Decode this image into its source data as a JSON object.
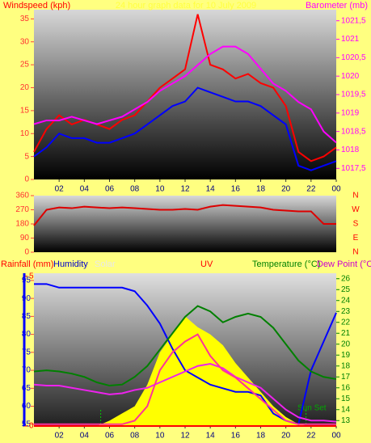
{
  "chart_data": [
    {
      "type": "line",
      "title": "24 hour graph data for 10 July 2009",
      "ylabel": "Windspeed (kph)",
      "y2label": "Barometer (mb)",
      "x": [
        0,
        1,
        2,
        3,
        4,
        5,
        6,
        7,
        8,
        9,
        10,
        11,
        12,
        13,
        14,
        15,
        16,
        17,
        18,
        19,
        20,
        21,
        22,
        23,
        24
      ],
      "xlim": [
        0,
        24
      ],
      "xticks": [
        {
          "value": 2,
          "label": "02"
        },
        {
          "value": 4,
          "label": "04"
        },
        {
          "value": 6,
          "label": "06"
        },
        {
          "value": 8,
          "label": "08"
        },
        10,
        12,
        14,
        16,
        18,
        20,
        22,
        {
          "value": 24,
          "label": "00"
        }
      ],
      "ylim": [
        0,
        37
      ],
      "yticks": [
        0,
        5,
        10,
        15,
        20,
        25,
        30,
        35
      ],
      "y2lim": [
        1017.2,
        1021.8
      ],
      "y2ticks": [
        {
          "value": 1017.5,
          "label": "1017,5"
        },
        1018,
        {
          "value": 1018.5,
          "label": "1018,5"
        },
        1019,
        {
          "value": 1019.5,
          "label": "1019,5"
        },
        1020,
        {
          "value": 1020.5,
          "label": "1020,5"
        },
        1021,
        {
          "value": 1021.5,
          "label": "1021,5"
        }
      ],
      "series": [
        {
          "color": "#ff0000",
          "values": [
            6,
            11,
            14,
            12,
            13,
            12,
            11,
            13,
            14,
            17,
            20,
            22,
            24,
            36,
            25,
            24,
            22,
            23,
            21,
            20,
            16,
            6,
            4,
            5,
            7
          ]
        },
        {
          "color": "#0000ff",
          "values": [
            5,
            7,
            10,
            9,
            9,
            8,
            8,
            9,
            10,
            12,
            14,
            16,
            17,
            20,
            19,
            18,
            17,
            17,
            16,
            14,
            12,
            3,
            2,
            3,
            4
          ]
        },
        {
          "color": "#ff00ff",
          "axis": "y2",
          "values": [
            1018.7,
            1018.8,
            1018.8,
            1018.9,
            1018.8,
            1018.7,
            1018.8,
            1018.9,
            1019.1,
            1019.3,
            1019.6,
            1019.8,
            1020.0,
            1020.3,
            1020.6,
            1020.8,
            1020.8,
            1020.6,
            1020.2,
            1019.8,
            1019.6,
            1019.3,
            1019.1,
            1018.5,
            1018.2
          ]
        }
      ]
    },
    {
      "type": "line",
      "x": [
        0,
        1,
        2,
        3,
        4,
        5,
        6,
        7,
        8,
        9,
        10,
        11,
        12,
        13,
        14,
        15,
        16,
        17,
        18,
        19,
        20,
        21,
        22,
        23,
        24
      ],
      "xlim": [
        0,
        24
      ],
      "ylim": [
        0,
        360
      ],
      "yticks": [
        0,
        90,
        180,
        270,
        360
      ],
      "compass_labels": [
        "N",
        "E",
        "S",
        "W",
        "N"
      ],
      "series": [
        {
          "color": "#dd0000",
          "values": [
            170,
            270,
            285,
            280,
            290,
            285,
            280,
            285,
            280,
            275,
            270,
            270,
            275,
            270,
            290,
            300,
            295,
            290,
            285,
            270,
            265,
            260,
            260,
            180,
            180
          ]
        }
      ]
    },
    {
      "type": "line",
      "labels": {
        "rain": "Rainfall (mm)",
        "humidity": "Humidity",
        "solar": "Solar",
        "uv": "UV",
        "temperature": "Temperature (°C)",
        "dew": "Dew Point (°C"
      },
      "annotation": "Sun Set",
      "x": [
        0,
        1,
        2,
        3,
        4,
        5,
        6,
        7,
        8,
        9,
        10,
        11,
        12,
        13,
        14,
        15,
        16,
        17,
        18,
        19,
        20,
        21,
        22,
        23,
        24
      ],
      "xlim": [
        0,
        24
      ],
      "xticks": [
        {
          "value": 2,
          "label": "02"
        },
        {
          "value": 4,
          "label": "04"
        },
        {
          "value": 6,
          "label": "06"
        },
        {
          "value": 8,
          "label": "08"
        },
        10,
        12,
        14,
        16,
        18,
        20,
        22,
        {
          "value": 24,
          "label": "00"
        }
      ],
      "sun_lines": [
        5.3,
        21.6
      ],
      "ylim": [
        54.5,
        97
      ],
      "yticks": [
        55,
        60,
        65,
        70,
        75,
        80,
        85,
        90,
        95
      ],
      "y2lim": [
        12.5,
        26.5
      ],
      "y2ticks": [
        13,
        14,
        15,
        16,
        17,
        18,
        19,
        20,
        21,
        22,
        23,
        24,
        25,
        26
      ],
      "rainlim": [
        0,
        5.1
      ],
      "rainticks": [
        0,
        5
      ],
      "series": [
        {
          "name": "Solar",
          "kind": "area",
          "color": "#ffff00",
          "values": [
            54.5,
            54.5,
            54.5,
            54.5,
            54.5,
            54.5,
            56,
            58,
            60,
            66,
            75,
            80,
            85,
            82,
            80,
            77,
            72,
            68,
            64,
            60,
            57,
            55,
            54.5,
            54.5,
            54.5
          ]
        },
        {
          "name": "Rainfall",
          "axis": "rain",
          "color": "#ff0000",
          "values": [
            0,
            0,
            0,
            0,
            0,
            0,
            0,
            0,
            0,
            0,
            0,
            0,
            0,
            0,
            0,
            0,
            0,
            0,
            0,
            0,
            0,
            0,
            0,
            0,
            0
          ]
        },
        {
          "name": "Humidity",
          "color": "#0000ff",
          "values": [
            94,
            94,
            93,
            93,
            93,
            93,
            93,
            93,
            92,
            88,
            83,
            76,
            70,
            68,
            66,
            65,
            64,
            64,
            63,
            58,
            56,
            55,
            70,
            78,
            86
          ]
        },
        {
          "name": "Temperature",
          "axis": "y2",
          "color": "#008000",
          "values": [
            17.5,
            17.6,
            17.5,
            17.3,
            17,
            16.5,
            16.2,
            16.3,
            17,
            18,
            19.5,
            21,
            22.5,
            23.5,
            23,
            22,
            22.5,
            22.8,
            22.5,
            21.5,
            20,
            18.5,
            17.5,
            17,
            16.8
          ]
        },
        {
          "name": "Dew Point",
          "axis": "y2",
          "color": "#ee22ee",
          "values": [
            16.3,
            16.2,
            16.2,
            16,
            15.8,
            15.6,
            15.4,
            15.5,
            15.8,
            16,
            16.5,
            17,
            17.5,
            18,
            18.2,
            17.8,
            17,
            16.5,
            16,
            15,
            14,
            13.3,
            13,
            13,
            12.9
          ]
        },
        {
          "name": "UV",
          "color": "#ff3399",
          "values": [
            55,
            55,
            55,
            55,
            55,
            55,
            55,
            55,
            56,
            60,
            70,
            75,
            78,
            80,
            74,
            70,
            68,
            65,
            62,
            59,
            56,
            55,
            55,
            55,
            55
          ]
        }
      ]
    }
  ]
}
